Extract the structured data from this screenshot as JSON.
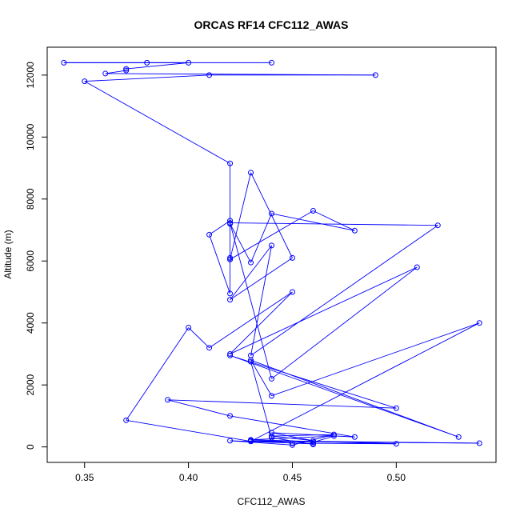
{
  "chart_data": {
    "type": "line",
    "title": "ORCAS RF14 CFC112_AWAS",
    "xlabel": "CFC112_AWAS",
    "ylabel": "Altitude (m)",
    "xlim": [
      0.332,
      0.548
    ],
    "ylim": [
      -500,
      12900
    ],
    "x_ticks": [
      0.35,
      0.4,
      0.45,
      0.5
    ],
    "x_tick_labels": [
      "0.35",
      "0.40",
      "0.45",
      "0.50"
    ],
    "y_ticks": [
      0,
      2000,
      4000,
      6000,
      8000,
      10000,
      12000
    ],
    "y_tick_labels": [
      "0",
      "2000",
      "4000",
      "6000",
      "8000",
      "10000",
      "12000"
    ],
    "grid": false,
    "legend": "none",
    "series_color": "#0000ff",
    "markers": "open-circle",
    "series": [
      {
        "x": [
          0.44,
          0.34,
          0.38,
          0.4,
          0.37,
          0.37,
          0.36,
          0.49,
          0.41,
          0.35,
          0.42,
          0.42,
          0.42,
          0.42,
          0.41,
          0.42,
          0.42,
          0.43,
          0.44,
          0.48,
          0.46,
          0.42,
          0.43,
          0.45,
          0.42,
          0.44,
          0.43,
          0.52,
          0.42,
          0.44,
          0.51,
          0.42,
          0.45,
          0.41,
          0.4,
          0.37,
          0.43,
          0.43,
          0.54,
          0.44,
          0.43,
          0.53,
          0.42,
          0.5,
          0.39,
          0.42,
          0.48,
          0.44,
          0.46,
          0.44,
          0.47,
          0.45,
          0.42,
          0.46,
          0.43,
          0.54,
          0.43,
          0.45,
          0.5,
          0.43,
          0.47,
          0.46,
          0.46,
          0.44,
          0.43
        ],
        "y": [
          12400,
          12400,
          12400,
          12400,
          12200,
          12150,
          12050,
          12000,
          12000,
          11800,
          9150,
          6100,
          6050,
          4950,
          6850,
          7300,
          7200,
          5950,
          7530,
          6980,
          7620,
          6050,
          8850,
          6100,
          4750,
          6500,
          2950,
          7150,
          7230,
          2200,
          5800,
          3000,
          5000,
          3200,
          3850,
          860,
          180,
          180,
          4000,
          1650,
          2800,
          320,
          2950,
          1250,
          1520,
          1000,
          320,
          460,
          200,
          350,
          400,
          60,
          200,
          100,
          180,
          120,
          200,
          120,
          100,
          230,
          350,
          150,
          80,
          300,
          2750
        ]
      }
    ]
  }
}
